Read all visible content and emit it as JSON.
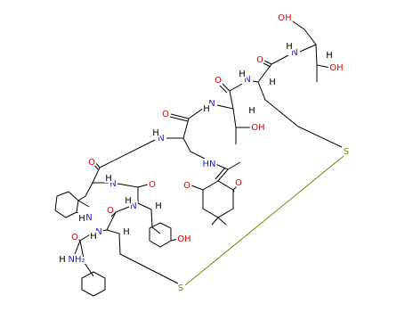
{
  "atom_labels": [
    "OH",
    "N",
    "H",
    "O",
    "H",
    "OH",
    "N",
    "H",
    "O",
    "H",
    "N",
    "H",
    "H",
    "O",
    "OH",
    "N",
    "H",
    "S",
    "O",
    "HN",
    "N",
    "H",
    "O",
    "O",
    "O",
    "H",
    "N",
    "N",
    "H",
    "O",
    "H",
    "N",
    "H",
    "O",
    "H",
    "OH",
    "NH₂",
    "H",
    "S"
  ]
}
